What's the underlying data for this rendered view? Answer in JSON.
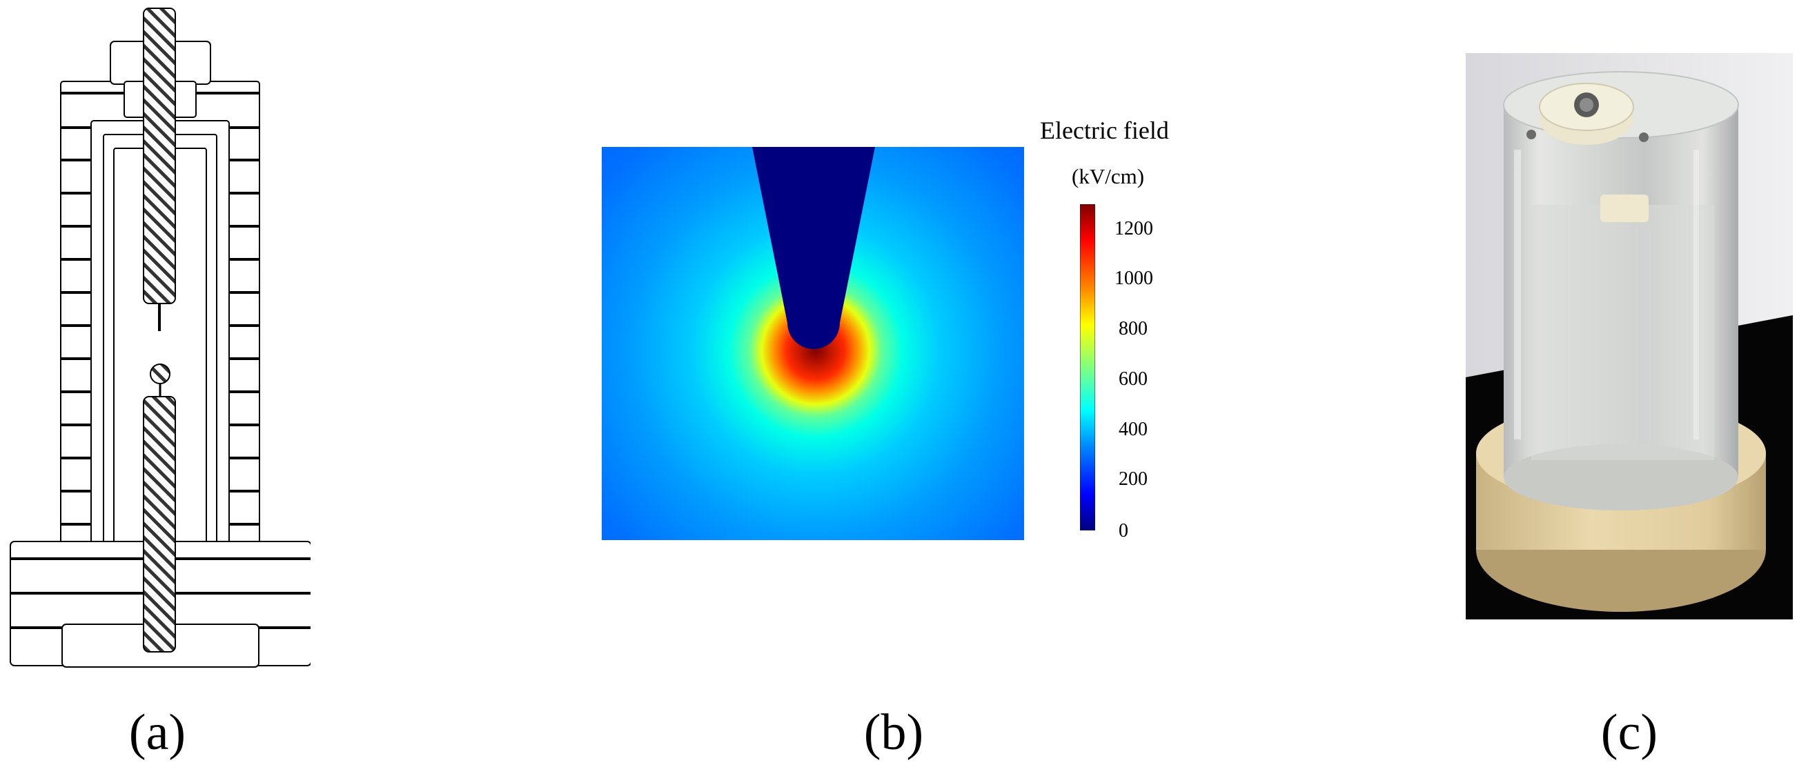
{
  "figure": {
    "panels": [
      {
        "id": "a",
        "caption": "(a)"
      },
      {
        "id": "b",
        "caption": "(b)"
      },
      {
        "id": "c",
        "caption": "(c)"
      }
    ],
    "colorbar": {
      "title": "Electric field",
      "unit": "(kV/cm)",
      "ticks": [
        "1200",
        "1000",
        "800",
        "600",
        "400",
        "200",
        "0"
      ],
      "range": [
        0,
        1300
      ],
      "colormap": [
        "#00007f",
        "#0000ff",
        "#0080ff",
        "#00ffff",
        "#80ff80",
        "#ffff00",
        "#ff8000",
        "#ff0000",
        "#7f0000"
      ]
    }
  }
}
